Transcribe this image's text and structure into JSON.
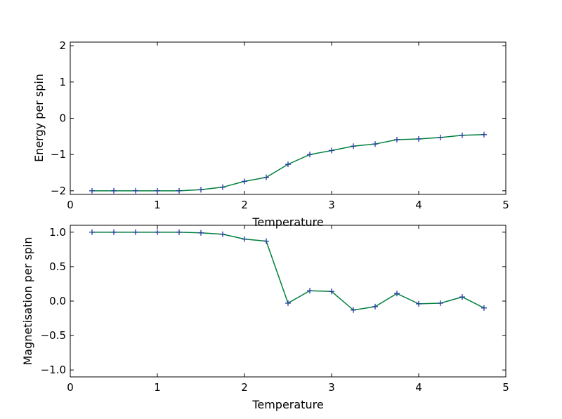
{
  "colors": {
    "background": "#ffffff",
    "axes": "#000000",
    "line": "#007f3f",
    "marker": "#1f3a9e"
  },
  "chart_data": [
    {
      "type": "line",
      "title": "",
      "xlabel": "Temperature",
      "ylabel": "Energy per spin",
      "xlim": [
        0,
        5
      ],
      "ylim": [
        -2.1,
        2.1
      ],
      "xticks": [
        "0",
        "1",
        "2",
        "3",
        "4",
        "5"
      ],
      "yticks": [
        "2",
        "1",
        "0",
        "−1",
        "−2"
      ],
      "ytick_values": [
        2,
        1,
        0,
        -1,
        -2
      ],
      "grid": false,
      "legend": "none",
      "marker": "+",
      "x": [
        0.25,
        0.5,
        0.75,
        1.0,
        1.25,
        1.5,
        1.75,
        2.0,
        2.25,
        2.5,
        2.75,
        3.0,
        3.25,
        3.5,
        3.75,
        4.0,
        4.25,
        4.5,
        4.75
      ],
      "series": [
        {
          "values": [
            -2.0,
            -2.0,
            -2.0,
            -2.0,
            -2.0,
            -1.97,
            -1.9,
            -1.74,
            -1.63,
            -1.27,
            -1.0,
            -0.89,
            -0.77,
            -0.71,
            -0.59,
            -0.57,
            -0.53,
            -0.47,
            -0.45
          ]
        }
      ]
    },
    {
      "type": "line",
      "title": "",
      "xlabel": "Temperature",
      "ylabel": "Magnetisation per spin",
      "xlim": [
        0,
        5
      ],
      "ylim": [
        -1.1,
        1.1
      ],
      "xticks": [
        "0",
        "1",
        "2",
        "3",
        "4",
        "5"
      ],
      "yticks": [
        "1.0",
        "0.5",
        "0.0",
        "−0.5",
        "−1.0"
      ],
      "ytick_values": [
        1.0,
        0.5,
        0.0,
        -0.5,
        -1.0
      ],
      "grid": false,
      "legend": "none",
      "marker": "+",
      "x": [
        0.25,
        0.5,
        0.75,
        1.0,
        1.25,
        1.5,
        1.75,
        2.0,
        2.25,
        2.5,
        2.75,
        3.0,
        3.25,
        3.5,
        3.75,
        4.0,
        4.25,
        4.5,
        4.75
      ],
      "series": [
        {
          "values": [
            1.0,
            1.0,
            1.0,
            1.0,
            1.0,
            0.99,
            0.97,
            0.9,
            0.87,
            -0.03,
            0.15,
            0.14,
            -0.13,
            -0.08,
            0.11,
            -0.04,
            -0.03,
            0.06,
            -0.1
          ]
        }
      ]
    }
  ]
}
